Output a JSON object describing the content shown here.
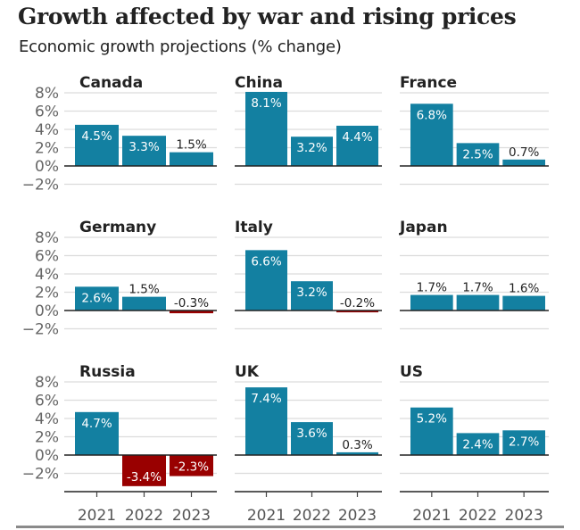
{
  "chart_data": {
    "type": "bar",
    "layout": "small-multiples",
    "title": "Growth affected by war and rising prices",
    "subtitle": "Economic growth projections (% change)",
    "xlabel": "",
    "ylabel": "",
    "categories": [
      "2021",
      "2022",
      "2023"
    ],
    "ylim": [
      -2,
      8
    ],
    "yticks": [
      8,
      6,
      4,
      2,
      0,
      -2
    ],
    "ytick_labels": [
      "8%",
      "6%",
      "4%",
      "2%",
      "0%",
      "−2%"
    ],
    "grid": true,
    "legend": "none",
    "colors": {
      "positive": "#1380A1",
      "negative": "#990000"
    },
    "series": [
      {
        "name": "Canada",
        "values": [
          4.5,
          3.3,
          1.5
        ],
        "labels": [
          "4.5%",
          "3.3%",
          "1.5%"
        ]
      },
      {
        "name": "China",
        "values": [
          8.1,
          3.2,
          4.4
        ],
        "labels": [
          "8.1%",
          "3.2%",
          "4.4%"
        ]
      },
      {
        "name": "France",
        "values": [
          6.8,
          2.5,
          0.7
        ],
        "labels": [
          "6.8%",
          "2.5%",
          "0.7%"
        ]
      },
      {
        "name": "Germany",
        "values": [
          2.6,
          1.5,
          -0.3
        ],
        "labels": [
          "2.6%",
          "1.5%",
          "-0.3%"
        ]
      },
      {
        "name": "Italy",
        "values": [
          6.6,
          3.2,
          -0.2
        ],
        "labels": [
          "6.6%",
          "3.2%",
          "-0.2%"
        ]
      },
      {
        "name": "Japan",
        "values": [
          1.7,
          1.7,
          1.6
        ],
        "labels": [
          "1.7%",
          "1.7%",
          "1.6%"
        ]
      },
      {
        "name": "Russia",
        "values": [
          4.7,
          -3.4,
          -2.3
        ],
        "labels": [
          "4.7%",
          "-3.4%",
          "-2.3%"
        ]
      },
      {
        "name": "UK",
        "values": [
          7.4,
          3.6,
          0.3
        ],
        "labels": [
          "7.4%",
          "3.6%",
          "0.3%"
        ]
      },
      {
        "name": "US",
        "values": [
          5.2,
          2.4,
          2.7
        ],
        "labels": [
          "5.2%",
          "2.4%",
          "2.7%"
        ]
      }
    ]
  }
}
